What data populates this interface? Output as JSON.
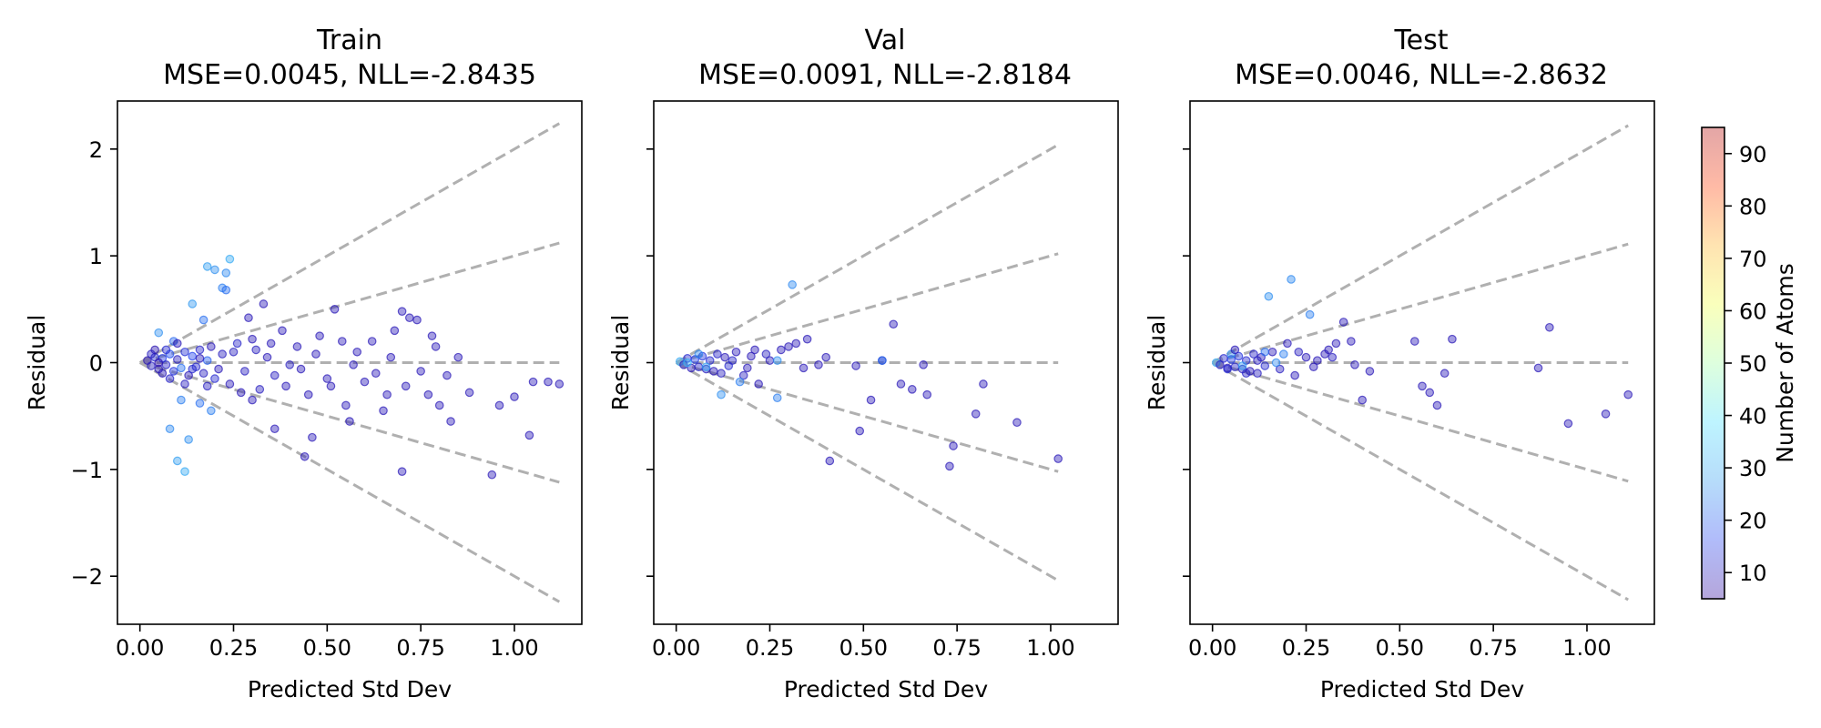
{
  "colorbar": {
    "label": "Number of Atoms",
    "range": [
      5,
      95
    ],
    "ticks": [
      10,
      20,
      30,
      40,
      50,
      60,
      70,
      80,
      90
    ],
    "colormap": [
      "#2b0098",
      "#1f3ff0",
      "#2f9bf0",
      "#45e0ff",
      "#a0ffa0",
      "#f0ff40",
      "#ffb020",
      "#ff3a00",
      "#b00000"
    ],
    "alpha": 0.35
  },
  "chart_data": [
    {
      "type": "scatter",
      "title_line1": "Train",
      "title_line2": "MSE=0.0045, NLL=-2.8435",
      "xlabel": "Predicted Std Dev",
      "ylabel": "Residual",
      "xlim": [
        -0.06,
        1.18
      ],
      "ylim": [
        -2.45,
        2.45
      ],
      "xticks": [
        0.0,
        0.25,
        0.5,
        0.75,
        1.0
      ],
      "xtick_labels": [
        "0.00",
        "0.25",
        "0.50",
        "0.75",
        "1.00"
      ],
      "yticks": [
        -2,
        -1,
        0,
        1,
        2
      ],
      "ytick_labels": [
        "−2",
        "−1",
        "0",
        "1",
        "2"
      ],
      "show_ytick_labels": true,
      "guide_lines": {
        "sigma_multipliers": [
          -2,
          -1,
          0,
          1,
          2
        ],
        "x_max": 1.12,
        "color": "#b0b0b0"
      },
      "points": [
        [
          0.02,
          0.02,
          8
        ],
        [
          0.03,
          -0.03,
          10
        ],
        [
          0.04,
          0.05,
          12
        ],
        [
          0.05,
          -0.06,
          9
        ],
        [
          0.06,
          0.04,
          15
        ],
        [
          0.07,
          -0.02,
          11
        ],
        [
          0.08,
          0.08,
          18
        ],
        [
          0.09,
          -0.08,
          14
        ],
        [
          0.1,
          0.03,
          10
        ],
        [
          0.11,
          -0.05,
          22
        ],
        [
          0.12,
          0.1,
          13
        ],
        [
          0.13,
          -0.12,
          9
        ],
        [
          0.14,
          0.06,
          16
        ],
        [
          0.15,
          -0.04,
          12
        ],
        [
          0.16,
          0.12,
          11
        ],
        [
          0.17,
          -0.1,
          10
        ],
        [
          0.18,
          0.02,
          20
        ],
        [
          0.19,
          0.15,
          9
        ],
        [
          0.2,
          -0.15,
          12
        ],
        [
          0.22,
          0.08,
          10
        ],
        [
          0.24,
          -0.2,
          9
        ],
        [
          0.26,
          0.18,
          11
        ],
        [
          0.28,
          -0.08,
          10
        ],
        [
          0.3,
          0.22,
          9
        ],
        [
          0.32,
          -0.25,
          10
        ],
        [
          0.34,
          0.05,
          9
        ],
        [
          0.36,
          -0.12,
          10
        ],
        [
          0.38,
          0.3,
          9
        ],
        [
          0.4,
          -0.02,
          10
        ],
        [
          0.42,
          0.15,
          9
        ],
        [
          0.45,
          -0.3,
          9
        ],
        [
          0.48,
          0.25,
          9
        ],
        [
          0.5,
          -0.15,
          9
        ],
        [
          0.52,
          0.5,
          9
        ],
        [
          0.55,
          -0.4,
          9
        ],
        [
          0.58,
          0.1,
          9
        ],
        [
          0.6,
          -0.18,
          9
        ],
        [
          0.62,
          0.2,
          9
        ],
        [
          0.65,
          -0.45,
          9
        ],
        [
          0.68,
          0.3,
          9
        ],
        [
          0.7,
          -1.02,
          9
        ],
        [
          0.72,
          0.42,
          9
        ],
        [
          0.75,
          -0.08,
          9
        ],
        [
          0.78,
          0.25,
          9
        ],
        [
          0.8,
          -0.4,
          9
        ],
        [
          0.82,
          -0.12,
          9
        ],
        [
          0.85,
          0.05,
          9
        ],
        [
          0.88,
          -0.28,
          9
        ],
        [
          0.94,
          -1.05,
          9
        ],
        [
          0.96,
          -0.4,
          9
        ],
        [
          1.0,
          -0.32,
          9
        ],
        [
          1.04,
          -0.68,
          9
        ],
        [
          1.05,
          -0.18,
          9
        ],
        [
          1.09,
          -0.18,
          9
        ],
        [
          1.12,
          -0.2,
          9
        ],
        [
          0.7,
          0.48,
          9
        ],
        [
          0.74,
          0.4,
          9
        ],
        [
          0.66,
          -0.3,
          9
        ],
        [
          0.56,
          -0.55,
          9
        ],
        [
          0.46,
          -0.7,
          9
        ],
        [
          0.44,
          -0.88,
          9
        ],
        [
          0.36,
          -0.62,
          9
        ],
        [
          0.3,
          -0.35,
          9
        ],
        [
          0.33,
          0.55,
          9
        ],
        [
          0.29,
          0.42,
          9
        ],
        [
          0.08,
          -0.62,
          25
        ],
        [
          0.1,
          -0.92,
          28
        ],
        [
          0.12,
          -1.02,
          30
        ],
        [
          0.13,
          -0.72,
          26
        ],
        [
          0.11,
          -0.35,
          24
        ],
        [
          0.14,
          0.55,
          27
        ],
        [
          0.17,
          0.4,
          22
        ],
        [
          0.18,
          0.9,
          28
        ],
        [
          0.2,
          0.87,
          26
        ],
        [
          0.22,
          0.7,
          24
        ],
        [
          0.23,
          0.84,
          25
        ],
        [
          0.24,
          0.97,
          30
        ],
        [
          0.23,
          0.68,
          22
        ],
        [
          0.19,
          -0.45,
          24
        ],
        [
          0.16,
          -0.38,
          22
        ],
        [
          0.05,
          0.28,
          26
        ],
        [
          0.09,
          0.2,
          21
        ],
        [
          0.04,
          0.12,
          8
        ],
        [
          0.06,
          -0.1,
          9
        ],
        [
          0.03,
          0.08,
          10
        ],
        [
          0.07,
          0.12,
          12
        ],
        [
          0.05,
          0.0,
          7
        ],
        [
          0.08,
          -0.15,
          11
        ],
        [
          0.1,
          0.18,
          9
        ],
        [
          0.12,
          -0.2,
          10
        ],
        [
          0.14,
          -0.06,
          12
        ],
        [
          0.16,
          0.04,
          9
        ],
        [
          0.18,
          -0.22,
          10
        ],
        [
          0.21,
          -0.06,
          9
        ],
        [
          0.25,
          0.1,
          10
        ],
        [
          0.27,
          -0.28,
          9
        ],
        [
          0.31,
          0.12,
          10
        ],
        [
          0.35,
          0.18,
          9
        ],
        [
          0.39,
          -0.22,
          9
        ],
        [
          0.43,
          -0.06,
          9
        ],
        [
          0.47,
          0.08,
          9
        ],
        [
          0.51,
          -0.22,
          9
        ],
        [
          0.54,
          0.2,
          9
        ],
        [
          0.57,
          -0.02,
          9
        ],
        [
          0.63,
          -0.1,
          9
        ],
        [
          0.67,
          0.05,
          9
        ],
        [
          0.71,
          -0.22,
          9
        ],
        [
          0.77,
          -0.3,
          9
        ],
        [
          0.79,
          0.15,
          9
        ],
        [
          0.83,
          -0.55,
          9
        ]
      ]
    },
    {
      "type": "scatter",
      "title_line1": "Val",
      "title_line2": "MSE=0.0091, NLL=-2.8184",
      "xlabel": "Predicted Std Dev",
      "ylabel": "Residual",
      "xlim": [
        -0.06,
        1.18
      ],
      "ylim": [
        -2.45,
        2.45
      ],
      "xticks": [
        0.0,
        0.25,
        0.5,
        0.75,
        1.0
      ],
      "xtick_labels": [
        "0.00",
        "0.25",
        "0.50",
        "0.75",
        "1.00"
      ],
      "yticks": [
        -2,
        -1,
        0,
        1,
        2
      ],
      "ytick_labels": [
        "−2",
        "−1",
        "0",
        "1",
        "2"
      ],
      "show_ytick_labels": false,
      "guide_lines": {
        "sigma_multipliers": [
          -2,
          -1,
          0,
          1,
          2
        ],
        "x_max": 1.02,
        "color": "#b0b0b0"
      },
      "points": [
        [
          0.01,
          0.01,
          30
        ],
        [
          0.02,
          -0.02,
          10
        ],
        [
          0.03,
          0.04,
          12
        ],
        [
          0.04,
          -0.05,
          9
        ],
        [
          0.05,
          0.03,
          15
        ],
        [
          0.06,
          -0.04,
          11
        ],
        [
          0.07,
          0.06,
          14
        ],
        [
          0.08,
          -0.06,
          10
        ],
        [
          0.09,
          0.02,
          12
        ],
        [
          0.1,
          -0.08,
          9
        ],
        [
          0.11,
          0.08,
          11
        ],
        [
          0.12,
          -0.1,
          10
        ],
        [
          0.13,
          0.05,
          9
        ],
        [
          0.14,
          -0.03,
          12
        ],
        [
          0.16,
          0.1,
          9
        ],
        [
          0.18,
          -0.12,
          10
        ],
        [
          0.2,
          0.06,
          9
        ],
        [
          0.22,
          -0.2,
          9
        ],
        [
          0.25,
          0.02,
          9
        ],
        [
          0.28,
          0.12,
          9
        ],
        [
          0.3,
          0.15,
          9
        ],
        [
          0.32,
          0.18,
          9
        ],
        [
          0.34,
          -0.05,
          9
        ],
        [
          0.35,
          0.22,
          9
        ],
        [
          0.38,
          -0.02,
          9
        ],
        [
          0.4,
          0.05,
          9
        ],
        [
          0.41,
          -0.92,
          9
        ],
        [
          0.48,
          -0.03,
          9
        ],
        [
          0.49,
          -0.64,
          9
        ],
        [
          0.52,
          -0.35,
          9
        ],
        [
          0.55,
          0.02,
          9
        ],
        [
          0.58,
          0.36,
          9
        ],
        [
          0.6,
          -0.2,
          9
        ],
        [
          0.63,
          -0.25,
          9
        ],
        [
          0.66,
          -0.02,
          9
        ],
        [
          0.67,
          -0.3,
          9
        ],
        [
          0.73,
          -0.97,
          9
        ],
        [
          0.74,
          -0.78,
          9
        ],
        [
          0.8,
          -0.48,
          9
        ],
        [
          0.82,
          -0.2,
          9
        ],
        [
          0.91,
          -0.56,
          9
        ],
        [
          1.02,
          -0.9,
          9
        ],
        [
          0.31,
          0.73,
          25
        ],
        [
          0.27,
          -0.33,
          24
        ],
        [
          0.12,
          -0.3,
          26
        ],
        [
          0.17,
          -0.18,
          24
        ],
        [
          0.27,
          0.02,
          26
        ],
        [
          0.55,
          0.02,
          22
        ],
        [
          0.06,
          0.08,
          25
        ],
        [
          0.08,
          -0.04,
          28
        ],
        [
          0.03,
          0.0,
          32
        ],
        [
          0.15,
          0.02,
          11
        ],
        [
          0.19,
          -0.05,
          9
        ],
        [
          0.24,
          0.08,
          10
        ],
        [
          0.21,
          0.12,
          9
        ]
      ]
    },
    {
      "type": "scatter",
      "title_line1": "Test",
      "title_line2": "MSE=0.0046, NLL=-2.8632",
      "xlabel": "Predicted Std Dev",
      "ylabel": "Residual",
      "xlim": [
        -0.06,
        1.18
      ],
      "ylim": [
        -2.45,
        2.45
      ],
      "xticks": [
        0.0,
        0.25,
        0.5,
        0.75,
        1.0
      ],
      "xtick_labels": [
        "0.00",
        "0.25",
        "0.50",
        "0.75",
        "1.00"
      ],
      "yticks": [
        -2,
        -1,
        0,
        1,
        2
      ],
      "ytick_labels": [
        "−2",
        "−1",
        "0",
        "1",
        "2"
      ],
      "show_ytick_labels": false,
      "guide_lines": {
        "sigma_multipliers": [
          -2,
          -1,
          0,
          1,
          2
        ],
        "x_max": 1.11,
        "color": "#b0b0b0"
      },
      "points": [
        [
          0.01,
          0.0,
          30
        ],
        [
          0.02,
          -0.02,
          10
        ],
        [
          0.03,
          0.04,
          12
        ],
        [
          0.04,
          -0.05,
          9
        ],
        [
          0.05,
          0.03,
          15
        ],
        [
          0.06,
          -0.04,
          11
        ],
        [
          0.07,
          0.06,
          14
        ],
        [
          0.08,
          -0.06,
          10
        ],
        [
          0.09,
          0.02,
          12
        ],
        [
          0.1,
          -0.08,
          9
        ],
        [
          0.11,
          0.08,
          11
        ],
        [
          0.12,
          -0.1,
          10
        ],
        [
          0.13,
          0.05,
          9
        ],
        [
          0.14,
          -0.03,
          12
        ],
        [
          0.16,
          0.1,
          9
        ],
        [
          0.18,
          -0.06,
          10
        ],
        [
          0.2,
          0.18,
          9
        ],
        [
          0.22,
          -0.12,
          9
        ],
        [
          0.25,
          0.05,
          9
        ],
        [
          0.28,
          0.02,
          9
        ],
        [
          0.3,
          0.08,
          9
        ],
        [
          0.31,
          0.12,
          9
        ],
        [
          0.33,
          0.18,
          9
        ],
        [
          0.35,
          0.38,
          9
        ],
        [
          0.37,
          0.2,
          9
        ],
        [
          0.38,
          -0.02,
          9
        ],
        [
          0.4,
          -0.35,
          9
        ],
        [
          0.42,
          -0.08,
          9
        ],
        [
          0.54,
          0.2,
          9
        ],
        [
          0.56,
          -0.22,
          9
        ],
        [
          0.58,
          -0.28,
          9
        ],
        [
          0.6,
          -0.4,
          9
        ],
        [
          0.62,
          -0.1,
          9
        ],
        [
          0.64,
          0.22,
          9
        ],
        [
          0.87,
          -0.05,
          9
        ],
        [
          0.9,
          0.33,
          9
        ],
        [
          0.95,
          -0.57,
          9
        ],
        [
          1.05,
          -0.48,
          9
        ],
        [
          1.11,
          -0.3,
          9
        ],
        [
          0.21,
          0.78,
          25
        ],
        [
          0.15,
          0.62,
          26
        ],
        [
          0.26,
          0.45,
          24
        ],
        [
          0.14,
          0.1,
          22
        ],
        [
          0.17,
          0.0,
          25
        ],
        [
          0.19,
          0.08,
          24
        ],
        [
          0.05,
          0.08,
          26
        ],
        [
          0.08,
          -0.03,
          28
        ],
        [
          0.04,
          -0.06,
          12
        ],
        [
          0.12,
          0.02,
          10
        ],
        [
          0.09,
          -0.1,
          11
        ],
        [
          0.06,
          0.12,
          9
        ],
        [
          0.23,
          0.1,
          10
        ],
        [
          0.27,
          -0.04,
          9
        ],
        [
          0.32,
          0.05,
          10
        ]
      ]
    }
  ]
}
